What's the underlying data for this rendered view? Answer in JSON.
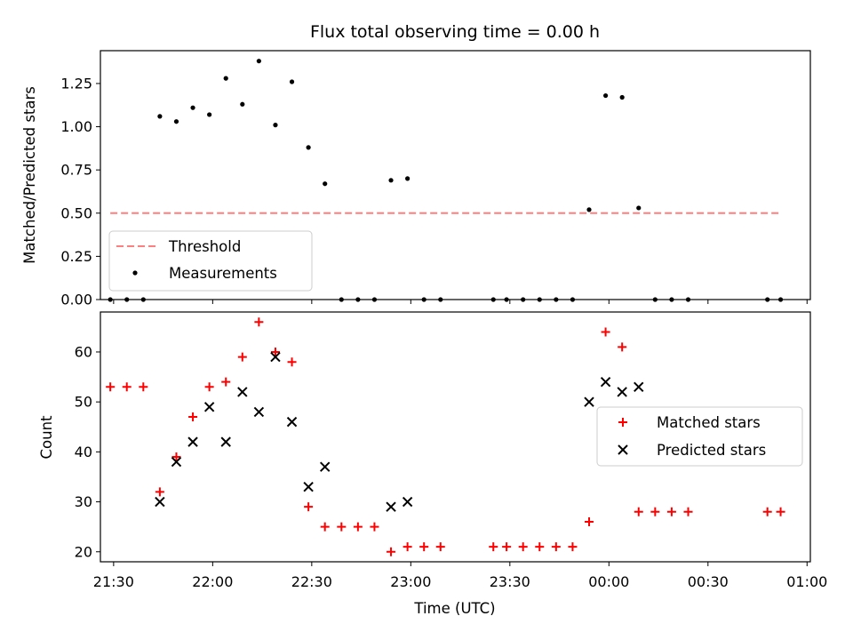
{
  "chart_data": [
    {
      "type": "scatter",
      "title": "Flux total observing time = 0.00 h",
      "ylabel": "Matched/Predicted stars",
      "ylim": [
        0,
        1.44
      ],
      "yticks": [
        "0.00",
        "0.25",
        "0.50",
        "0.75",
        "1.00",
        "1.25"
      ],
      "ytick_values": [
        0,
        0.25,
        0.5,
        0.75,
        1.0,
        1.25
      ],
      "xlim": [
        "21:26",
        "01:01"
      ],
      "legend_position": "lower-left",
      "grid": false,
      "threshold": {
        "name": "Threshold",
        "y": 0.5,
        "x_start": "21:29",
        "x_end": "00:52",
        "color": "#ff7f7f"
      },
      "series": [
        {
          "name": "Measurements",
          "color": "#000000",
          "marker": "dot",
          "x": [
            "21:29",
            "21:34",
            "21:39",
            "21:44",
            "21:49",
            "21:54",
            "21:59",
            "22:04",
            "22:09",
            "22:14",
            "22:19",
            "22:24",
            "22:29",
            "22:34",
            "22:39",
            "22:44",
            "22:49",
            "22:54",
            "22:59",
            "23:04",
            "23:09",
            "23:25",
            "23:29",
            "23:34",
            "23:39",
            "23:44",
            "23:49",
            "23:54",
            "23:59",
            "00:04",
            "00:09",
            "00:14",
            "00:19",
            "00:24",
            "00:48",
            "00:52"
          ],
          "y": [
            0,
            0,
            0,
            1.06,
            1.03,
            1.11,
            1.07,
            1.28,
            1.13,
            1.38,
            1.01,
            1.26,
            0.88,
            0.67,
            0,
            0,
            0,
            0.69,
            0.7,
            0,
            0,
            0,
            0,
            0,
            0,
            0,
            0,
            0.52,
            1.18,
            1.17,
            0.53,
            0,
            0,
            0,
            0,
            0
          ]
        }
      ]
    },
    {
      "type": "scatter",
      "xlabel": "Time (UTC)",
      "ylabel": "Count",
      "ylim": [
        18,
        68
      ],
      "yticks": [
        "20",
        "30",
        "40",
        "50",
        "60"
      ],
      "ytick_values": [
        20,
        30,
        40,
        50,
        60
      ],
      "xlim": [
        "21:26",
        "01:01"
      ],
      "xticks": [
        "21:30",
        "22:00",
        "22:30",
        "23:00",
        "23:30",
        "00:00",
        "00:30",
        "01:00"
      ],
      "legend_position": "center-right",
      "grid": false,
      "series": [
        {
          "name": "Matched stars",
          "color": "#ff0000",
          "marker": "plus",
          "x": [
            "21:29",
            "21:34",
            "21:39",
            "21:44",
            "21:49",
            "21:54",
            "21:59",
            "22:04",
            "22:09",
            "22:14",
            "22:19",
            "22:24",
            "22:29",
            "22:34",
            "22:39",
            "22:44",
            "22:49",
            "22:54",
            "22:59",
            "23:04",
            "23:09",
            "23:25",
            "23:29",
            "23:34",
            "23:39",
            "23:44",
            "23:49",
            "23:54",
            "23:59",
            "00:04",
            "00:09",
            "00:14",
            "00:19",
            "00:24",
            "00:48",
            "00:52"
          ],
          "y": [
            53,
            53,
            53,
            32,
            39,
            47,
            53,
            54,
            59,
            66,
            60,
            58,
            29,
            25,
            25,
            25,
            25,
            20,
            21,
            21,
            21,
            21,
            21,
            21,
            21,
            21,
            21,
            26,
            64,
            61,
            28,
            28,
            28,
            28,
            28,
            28
          ]
        },
        {
          "name": "Predicted stars",
          "color": "#000000",
          "marker": "x",
          "x": [
            "21:44",
            "21:49",
            "21:54",
            "21:59",
            "22:04",
            "22:09",
            "22:14",
            "22:19",
            "22:24",
            "22:29",
            "22:34",
            "22:54",
            "22:59",
            "23:54",
            "23:59",
            "00:04",
            "00:09"
          ],
          "y": [
            30,
            38,
            42,
            49,
            42,
            52,
            48,
            59,
            46,
            33,
            37,
            29,
            30,
            50,
            54,
            52,
            53
          ]
        }
      ]
    }
  ]
}
